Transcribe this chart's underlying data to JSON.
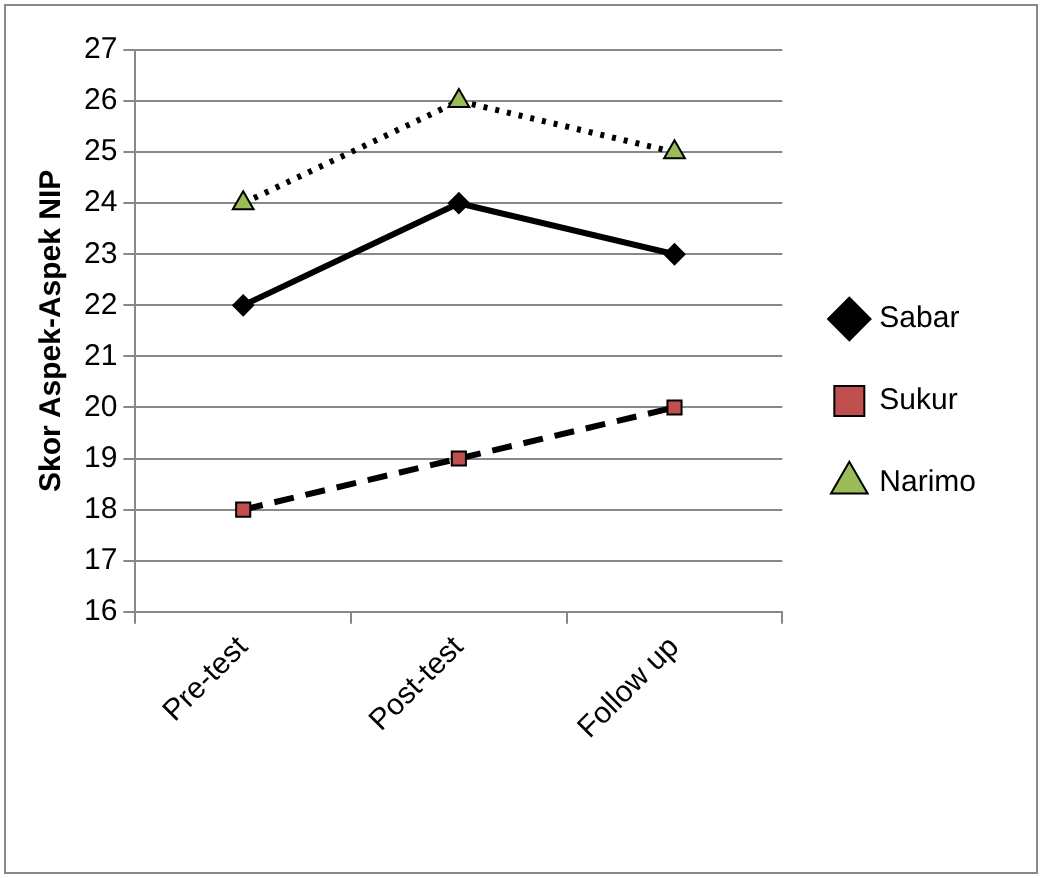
{
  "chart_data": {
    "type": "line",
    "ylabel": "Skor Aspek-Aspek NIP",
    "categories": [
      "Pre-test",
      "Post-test",
      "Follow up"
    ],
    "series": [
      {
        "name": "Sabar",
        "color": "#000000",
        "colors": [
          "#000000",
          "#000000",
          "#000000"
        ],
        "values": [
          22,
          24,
          23
        ],
        "marker": "diamond",
        "line_style": "solid"
      },
      {
        "name": "Sukur",
        "color": "#000000",
        "colors": [
          "#c0504d",
          "#c0504d",
          "#c0504d"
        ],
        "values": [
          18,
          19,
          20
        ],
        "marker": "square",
        "line_style": "dashed"
      },
      {
        "name": "Narimo",
        "color": "#000000",
        "colors": [
          "#9bbb59",
          "#9bbb59",
          "#9bbb59"
        ],
        "values": [
          24,
          26,
          25
        ],
        "marker": "triangle",
        "line_style": "dotted"
      }
    ],
    "ylim": [
      16,
      27
    ],
    "yticks": [
      16,
      17,
      18,
      19,
      20,
      21,
      22,
      23,
      24,
      25,
      26,
      27
    ],
    "grid": "y",
    "legend": "right"
  }
}
